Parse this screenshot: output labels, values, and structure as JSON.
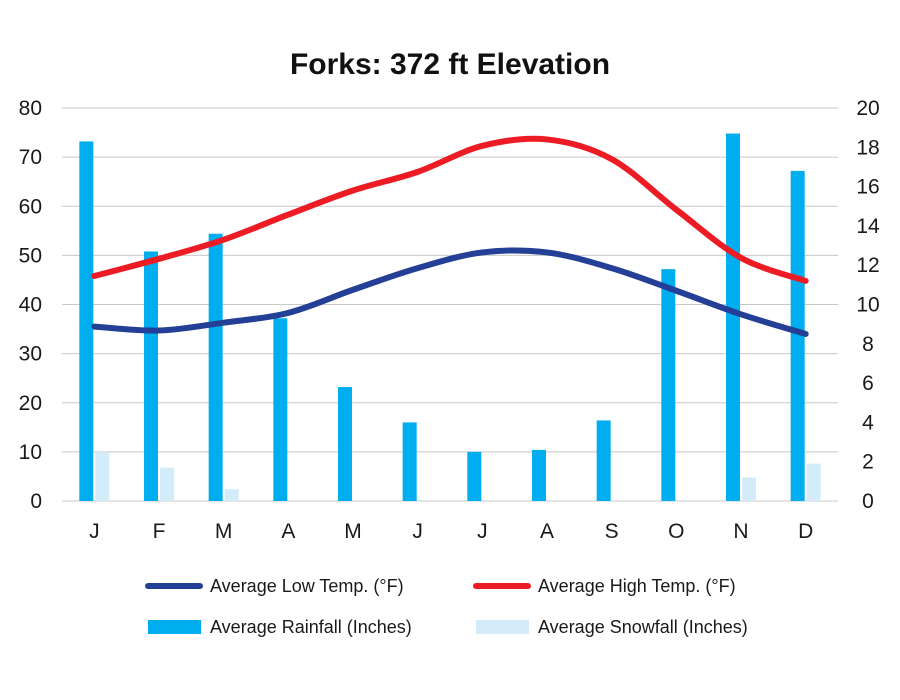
{
  "chart_data": {
    "type": "bar",
    "title": "Forks: 372 ft Elevation",
    "categories": [
      "J",
      "F",
      "M",
      "A",
      "M",
      "J",
      "J",
      "A",
      "S",
      "O",
      "N",
      "D"
    ],
    "y_left": {
      "ylim": [
        0,
        80
      ],
      "ticks": [
        "0",
        "10",
        "20",
        "30",
        "40",
        "50",
        "60",
        "70",
        "80"
      ]
    },
    "y_right": {
      "ylim": [
        0,
        20
      ],
      "ticks": [
        "0",
        "2",
        "4",
        "6",
        "8",
        "10",
        "12",
        "14",
        "16",
        "18",
        "20"
      ]
    },
    "grid": true,
    "legend_position": "bottom",
    "series": [
      {
        "name": "Average Rainfall (Inches)",
        "kind": "bar",
        "axis": "right",
        "color": "#00aeef",
        "values": [
          18.3,
          12.7,
          13.6,
          9.3,
          5.8,
          4.0,
          2.5,
          2.6,
          4.1,
          11.8,
          18.7,
          16.8
        ]
      },
      {
        "name": "Average Snowfall (Inches)",
        "kind": "bar",
        "axis": "right",
        "color": "#d4ecfa",
        "values": [
          2.5,
          1.7,
          0.6,
          0,
          0,
          0,
          0,
          0,
          0,
          0,
          1.2,
          1.9
        ]
      },
      {
        "name": "Average Low Temp. (°F)",
        "kind": "line",
        "axis": "left",
        "color": "#233f96",
        "values": [
          35.5,
          34.7,
          36.3,
          38.3,
          43.0,
          47.4,
          50.6,
          50.6,
          47.4,
          42.8,
          38.0,
          34.0
        ]
      },
      {
        "name": "Average High Temp. (°F)",
        "kind": "line",
        "axis": "left",
        "color": "#ed1c24",
        "values": [
          45.8,
          49.3,
          53.2,
          58.3,
          63.2,
          67.0,
          72.3,
          73.6,
          69.6,
          59.3,
          49.5,
          44.8
        ]
      }
    ]
  }
}
